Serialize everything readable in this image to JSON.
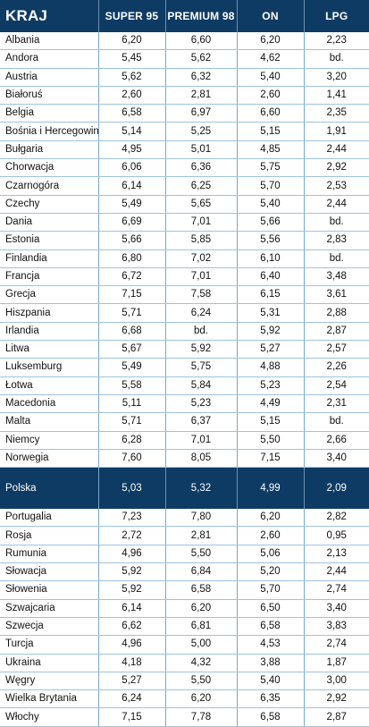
{
  "table": {
    "columns": [
      "KRAJ",
      "SUPER 95",
      "PREMIUM 98",
      "ON",
      "LPG"
    ],
    "rows": [
      [
        "Albania",
        "6,20",
        "6,60",
        "6,20",
        "2,23"
      ],
      [
        "Andora",
        "5,45",
        "5,62",
        "4,62",
        "bd."
      ],
      [
        "Austria",
        "5,62",
        "6,32",
        "5,40",
        "3,20"
      ],
      [
        "Białoruś",
        "2,60",
        "2,81",
        "2,60",
        "1,41"
      ],
      [
        "Belgia",
        "6,58",
        "6,97",
        "6,60",
        "2,35"
      ],
      [
        "Bośnia i Hercegowina",
        "5,14",
        "5,25",
        "5,15",
        "1,91"
      ],
      [
        "Bułgaria",
        "4,95",
        "5,01",
        "4,85",
        "2,44"
      ],
      [
        "Chorwacja",
        "6,06",
        "6,36",
        "5,75",
        "2,92"
      ],
      [
        "Czarnogóra",
        "6,14",
        "6,25",
        "5,70",
        "2,53"
      ],
      [
        "Czechy",
        "5,49",
        "5,65",
        "5,40",
        "2,44"
      ],
      [
        "Dania",
        "6,69",
        "7,01",
        "5,66",
        "bd."
      ],
      [
        "Estonia",
        "5,66",
        "5,85",
        "5,56",
        "2,83"
      ],
      [
        "Finlandia",
        "6,80",
        "7,02",
        "6,10",
        "bd."
      ],
      [
        "Francja",
        "6,72",
        "7,01",
        "6,40",
        "3,48"
      ],
      [
        "Grecja",
        "7,15",
        "7,58",
        "6,15",
        "3,61"
      ],
      [
        "Hiszpania",
        "5,71",
        "6,24",
        "5,31",
        "2,88"
      ],
      [
        "Irlandia",
        "6,68",
        "bd.",
        "5,92",
        "2,87"
      ],
      [
        "Litwa",
        "5,67",
        "5,92",
        "5,27",
        "2,57"
      ],
      [
        "Luksemburg",
        "5,49",
        "5,75",
        "4,88",
        "2,26"
      ],
      [
        "Łotwa",
        "5,58",
        "5,84",
        "5,23",
        "2,54"
      ],
      [
        "Macedonia",
        "5,11",
        "5,23",
        "4,49",
        "2,31"
      ],
      [
        "Malta",
        "5,71",
        "6,37",
        "5,15",
        "bd."
      ],
      [
        "Niemcy",
        "6,28",
        "7,01",
        "5,50",
        "2,66"
      ],
      [
        "Norwegia",
        "7,60",
        "8,05",
        "7,15",
        "3,40"
      ],
      [
        "Polska",
        "5,03",
        "5,32",
        "4,99",
        "2,09"
      ],
      [
        "Portugalia",
        "7,23",
        "7,80",
        "6,20",
        "2,82"
      ],
      [
        "Rosja",
        "2,72",
        "2,81",
        "2,60",
        "0,95"
      ],
      [
        "Rumunia",
        "4,96",
        "5,50",
        "5,06",
        "2,13"
      ],
      [
        "Słowacja",
        "5,92",
        "6,84",
        "5,20",
        "2,44"
      ],
      [
        "Słowenia",
        "5,92",
        "6,58",
        "5,70",
        "2,74"
      ],
      [
        "Szwajcaria",
        "6,14",
        "6,20",
        "6,50",
        "3,40"
      ],
      [
        "Szwecja",
        "6,62",
        "6,81",
        "6,58",
        "3,83"
      ],
      [
        "Turcja",
        "4,96",
        "5,00",
        "4,53",
        "2,74"
      ],
      [
        "Ukraina",
        "4,18",
        "4,32",
        "3,88",
        "1,87"
      ],
      [
        "Węgry",
        "5,27",
        "5,50",
        "5,40",
        "3,00"
      ],
      [
        "Wielka Brytania",
        "6,24",
        "6,20",
        "6,35",
        "2,92"
      ],
      [
        "Włochy",
        "7,15",
        "7,78",
        "6,58",
        "2,87"
      ]
    ],
    "highlight_row": "Polska"
  },
  "colors": {
    "header_bg": "#0e3b63",
    "grid_line": "#9ec3de"
  }
}
